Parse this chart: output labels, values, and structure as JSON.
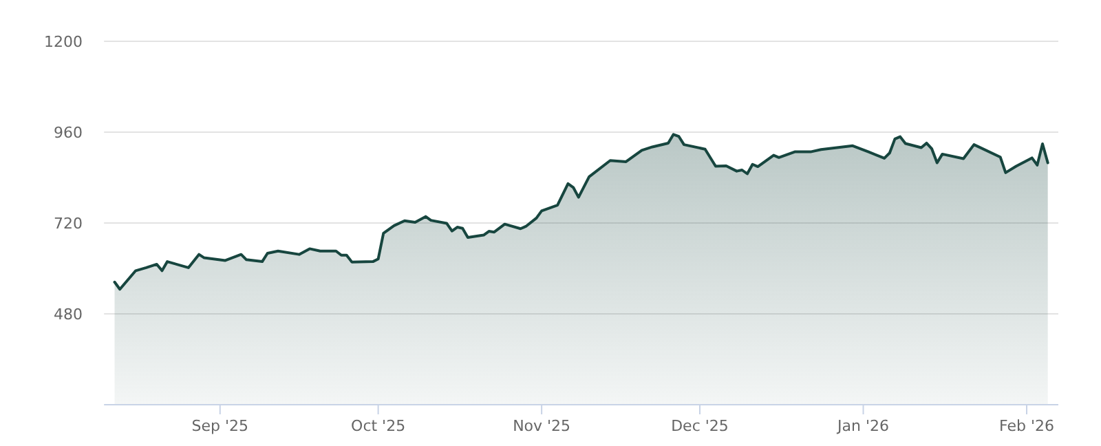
{
  "chart_data": {
    "type": "area",
    "grid": "y",
    "xlim": [
      "2025-08-10",
      "2026-02-07"
    ],
    "ylim": [
      240,
      1200
    ],
    "yticks": [
      480,
      720,
      960,
      1200
    ],
    "xticks": [
      {
        "value": "2025-09-01",
        "label": "Sep '25"
      },
      {
        "value": "2025-10-01",
        "label": "Oct '25"
      },
      {
        "value": "2025-11-01",
        "label": "Nov '25"
      },
      {
        "value": "2025-12-01",
        "label": "Dec '25"
      },
      {
        "value": "2026-01-01",
        "label": "Jan '26"
      },
      {
        "value": "2026-02-01",
        "label": "Feb '26"
      }
    ],
    "x": [
      "2025-08-12",
      "2025-08-13",
      "2025-08-16",
      "2025-08-18",
      "2025-08-20",
      "2025-08-21",
      "2025-08-22",
      "2025-08-26",
      "2025-08-28",
      "2025-08-29",
      "2025-09-02",
      "2025-09-05",
      "2025-09-06",
      "2025-09-09",
      "2025-09-10",
      "2025-09-12",
      "2025-09-16",
      "2025-09-18",
      "2025-09-20",
      "2025-09-23",
      "2025-09-24",
      "2025-09-25",
      "2025-09-26",
      "2025-09-30",
      "2025-10-01",
      "2025-10-02",
      "2025-10-04",
      "2025-10-06",
      "2025-10-08",
      "2025-10-10",
      "2025-10-11",
      "2025-10-14",
      "2025-10-15",
      "2025-10-16",
      "2025-10-17",
      "2025-10-18",
      "2025-10-21",
      "2025-10-22",
      "2025-10-23",
      "2025-10-25",
      "2025-10-28",
      "2025-10-29",
      "2025-10-31",
      "2025-11-01",
      "2025-11-04",
      "2025-11-06",
      "2025-11-07",
      "2025-11-08",
      "2025-11-10",
      "2025-11-14",
      "2025-11-17",
      "2025-11-20",
      "2025-11-22",
      "2025-11-25",
      "2025-11-26",
      "2025-11-27",
      "2025-11-28",
      "2025-12-02",
      "2025-12-04",
      "2025-12-06",
      "2025-12-08",
      "2025-12-09",
      "2025-12-10",
      "2025-12-11",
      "2025-12-12",
      "2025-12-15",
      "2025-12-16",
      "2025-12-19",
      "2025-12-22",
      "2025-12-24",
      "2025-12-30",
      "2026-01-02",
      "2026-01-05",
      "2026-01-06",
      "2026-01-07",
      "2026-01-08",
      "2026-01-09",
      "2026-01-12",
      "2026-01-13",
      "2026-01-14",
      "2026-01-15",
      "2026-01-16",
      "2026-01-20",
      "2026-01-22",
      "2026-01-27",
      "2026-01-28",
      "2026-01-30",
      "2026-02-02",
      "2026-02-03",
      "2026-02-04",
      "2026-02-05"
    ],
    "series": [
      {
        "color": "#17463f",
        "values": [
          564,
          545,
          594,
          602,
          611,
          594,
          618,
          602,
          637,
          628,
          621,
          637,
          623,
          618,
          640,
          646,
          637,
          652,
          646,
          646,
          635,
          635,
          617,
          618,
          625,
          693,
          713,
          726,
          722,
          737,
          727,
          719,
          699,
          709,
          706,
          682,
          688,
          698,
          696,
          717,
          705,
          711,
          733,
          752,
          767,
          824,
          814,
          788,
          842,
          885,
          882,
          912,
          921,
          931,
          954,
          949,
          927,
          915,
          870,
          871,
          857,
          860,
          850,
          875,
          869,
          899,
          893,
          908,
          908,
          914,
          924,
          908,
          891,
          905,
          942,
          948,
          930,
          919,
          931,
          916,
          879,
          902,
          890,
          927,
          894,
          853,
          870,
          892,
          873,
          929,
          879
        ]
      }
    ]
  }
}
